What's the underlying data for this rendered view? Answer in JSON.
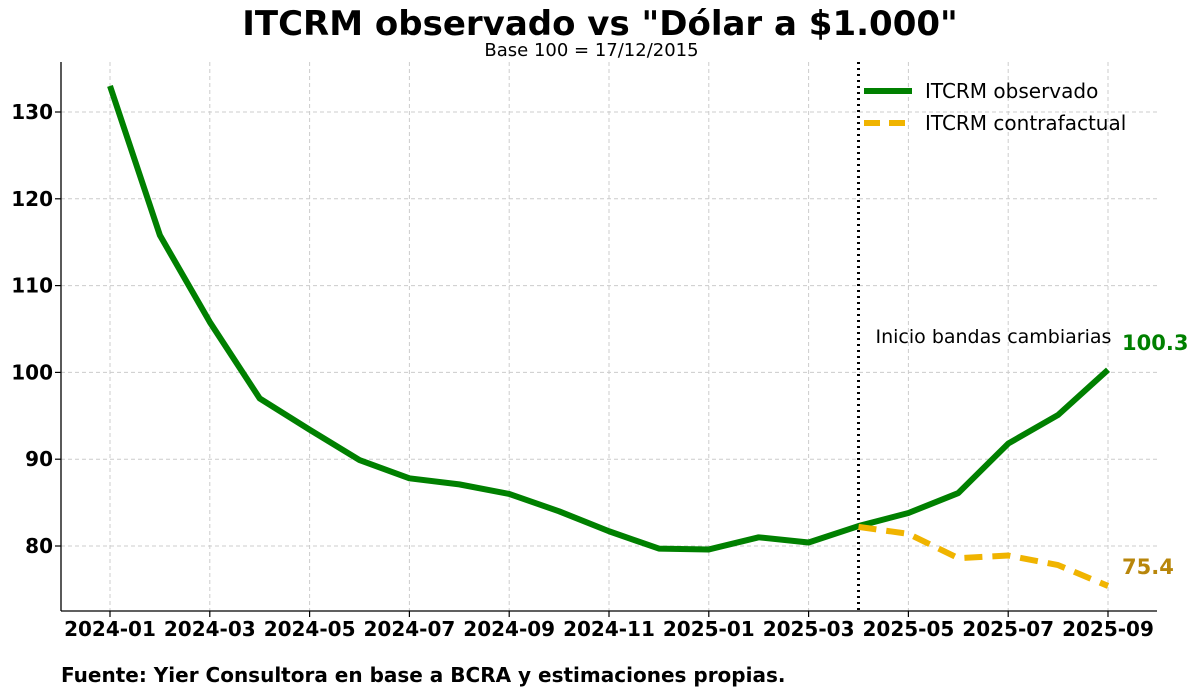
{
  "title": "ITCRM observado vs \"Dólar a $1.000\"",
  "subtitle": "Base 100 = 17/12/2015",
  "source": "Fuente: Yier Consultora en base a BCRA y estimaciones propias.",
  "colors": {
    "observed": "#008000",
    "counterfactual": "#f0b400",
    "counterfactual_label": "#b8860b",
    "grid": "#cccccc"
  },
  "chart_data": {
    "type": "line",
    "title": "ITCRM observado vs \"Dólar a $1.000\"",
    "subtitle": "Base 100 = 17/12/2015",
    "x": [
      "2024-01",
      "2024-02",
      "2024-03",
      "2024-04",
      "2024-05",
      "2024-06",
      "2024-07",
      "2024-08",
      "2024-09",
      "2024-10",
      "2024-11",
      "2024-12",
      "2025-01",
      "2025-02",
      "2025-03",
      "2025-04",
      "2025-05",
      "2025-06",
      "2025-07",
      "2025-08",
      "2025-09"
    ],
    "x_ticks": [
      "2024-01",
      "2024-03",
      "2024-05",
      "2024-07",
      "2024-09",
      "2024-11",
      "2025-01",
      "2025-03",
      "2025-05",
      "2025-07",
      "2025-09"
    ],
    "y_ticks": [
      80,
      90,
      100,
      110,
      120,
      130
    ],
    "ylim": [
      72.5,
      135.5
    ],
    "grid": true,
    "legend_position": "top-right",
    "series": [
      {
        "name": "ITCRM observado",
        "style": "solid",
        "values": [
          133.0,
          115.8,
          105.8,
          97.0,
          93.4,
          89.9,
          87.8,
          87.1,
          86.0,
          84.0,
          81.7,
          79.7,
          79.6,
          81.0,
          80.4,
          82.3,
          83.8,
          86.1,
          91.8,
          95.1,
          100.3
        ]
      },
      {
        "name": "ITCRM contrafactual",
        "style": "dashed",
        "x": [
          "2025-04",
          "2025-05",
          "2025-06",
          "2025-07",
          "2025-08",
          "2025-09"
        ],
        "values": [
          82.2,
          81.4,
          78.6,
          78.9,
          77.8,
          75.4
        ]
      }
    ],
    "annotations": [
      {
        "text": "Inicio bandas cambiarias",
        "x": "2025-04",
        "kind": "vertical-line-dotted"
      },
      {
        "text": "100.3",
        "series": "ITCRM observado"
      },
      {
        "text": "75.4",
        "series": "ITCRM contrafactual"
      }
    ]
  }
}
